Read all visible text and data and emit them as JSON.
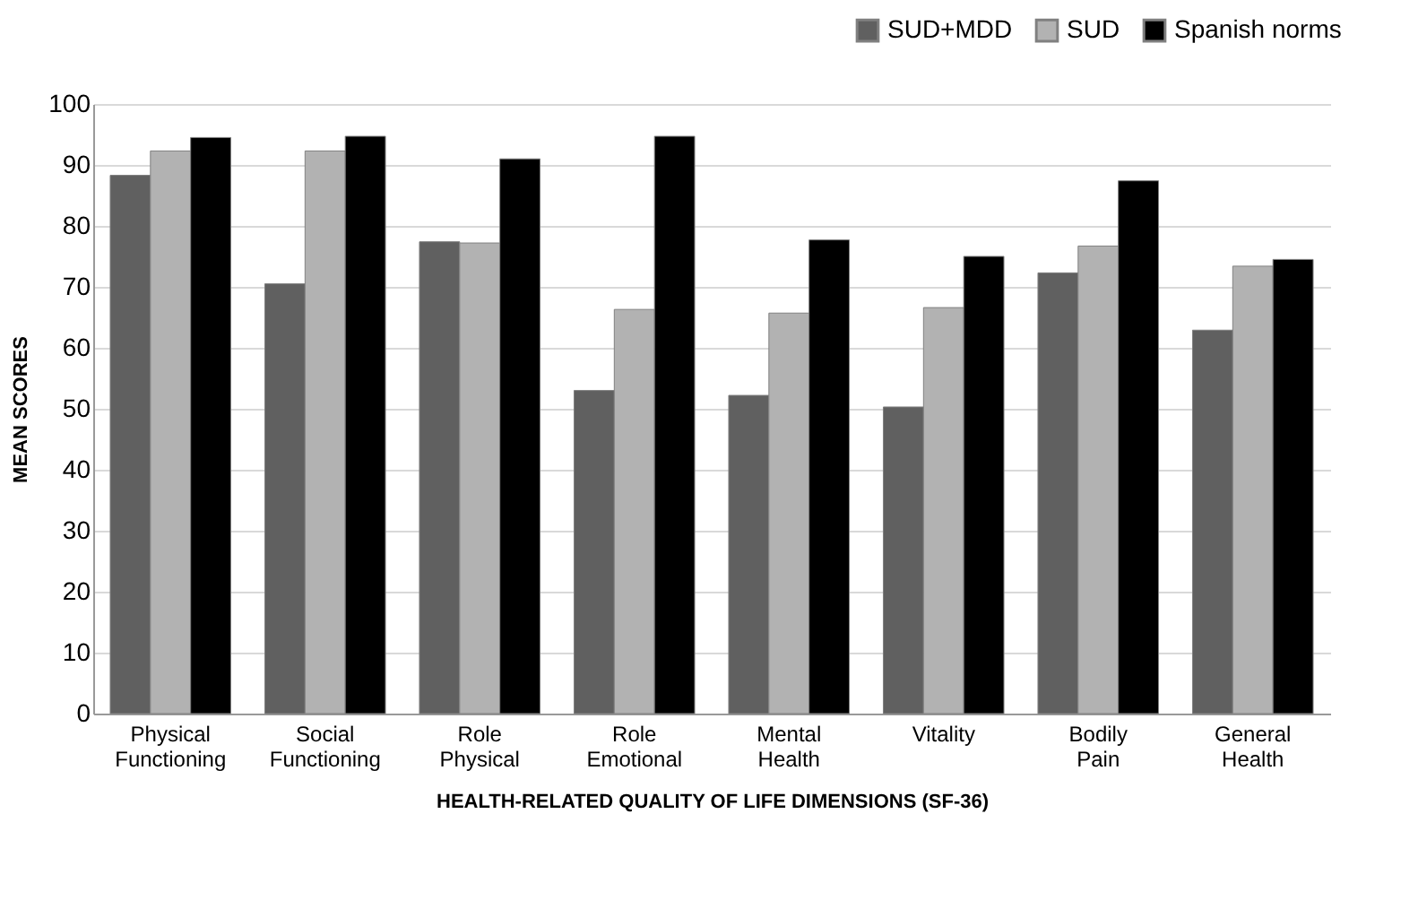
{
  "chart_data": {
    "type": "bar",
    "xlabel": "HEALTH-RELATED QUALITY OF LIFE DIMENSIONS (SF-36)",
    "ylabel": "MEAN SCORES",
    "categories": [
      "Physical Functioning",
      "Social Functioning",
      "Role Physical",
      "Role Emotional",
      "Mental Health",
      "Vitality",
      "Bodily Pain",
      "General Health"
    ],
    "series": [
      {
        "name": "SUD+MDD",
        "color": "#606060",
        "values": [
          88.3,
          70.5,
          77.4,
          53.0,
          52.2,
          50.3,
          72.3,
          62.9
        ]
      },
      {
        "name": "SUD",
        "color": "#b2b2b2",
        "values": [
          92.3,
          92.3,
          77.2,
          66.3,
          65.7,
          66.6,
          76.7,
          73.4
        ]
      },
      {
        "name": "Spanish norms",
        "color": "#000000",
        "values": [
          94.5,
          94.7,
          91.0,
          94.7,
          77.7,
          75.0,
          87.4,
          74.5
        ]
      }
    ],
    "ylim": [
      0,
      100
    ],
    "yticks": [
      0,
      10,
      20,
      30,
      40,
      50,
      60,
      70,
      80,
      90,
      100
    ],
    "grid": "y",
    "legend": "top right"
  }
}
